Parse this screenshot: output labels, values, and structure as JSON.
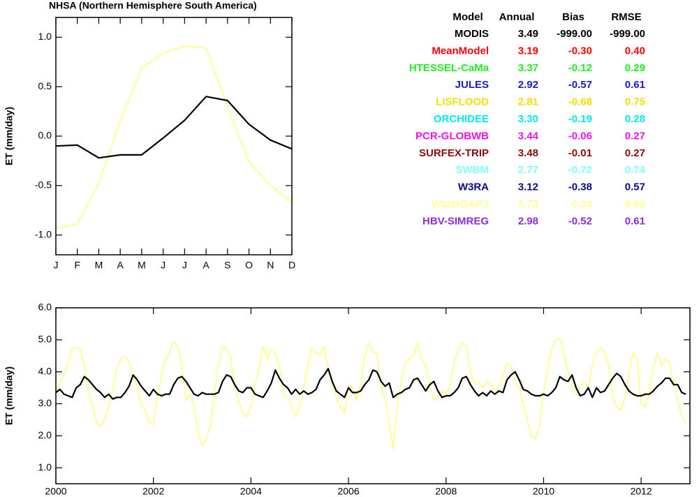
{
  "chart_data": [
    {
      "type": "line",
      "title": "NHSA (Northern Hemisphere South America)",
      "y_label": "ET (mm/day)",
      "categories": [
        "J",
        "F",
        "M",
        "A",
        "M",
        "J",
        "J",
        "A",
        "S",
        "O",
        "N",
        "D"
      ],
      "series": [
        {
          "color": "#ffff80",
          "values": [
            -0.93,
            -0.89,
            -0.48,
            0.15,
            0.69,
            0.84,
            0.91,
            0.89,
            0.3,
            -0.26,
            -0.5,
            -0.67
          ]
        },
        {
          "color": "#000000",
          "values": [
            -0.1,
            -0.09,
            -0.22,
            -0.19,
            -0.19,
            -0.02,
            0.16,
            0.4,
            0.36,
            0.12,
            -0.04,
            -0.13
          ]
        }
      ],
      "ylim": [
        -1.2,
        1.2
      ],
      "yticks": [
        {
          "value": -1,
          "label": "-1.0"
        },
        -0.5,
        {
          "value": 0,
          "label": "0.0"
        },
        0.5,
        {
          "value": 1,
          "label": "1.0"
        }
      ]
    },
    {
      "type": "line",
      "y_label": "ET (mm/day)",
      "x": [
        2000,
        2000.083,
        2000.167,
        2000.25,
        2000.333,
        2000.417,
        2000.5,
        2000.583,
        2000.667,
        2000.75,
        2000.833,
        2000.917,
        2001,
        2001.083,
        2001.167,
        2001.25,
        2001.333,
        2001.417,
        2001.5,
        2001.583,
        2001.667,
        2001.75,
        2001.833,
        2001.917,
        2002,
        2002.083,
        2002.167,
        2002.25,
        2002.333,
        2002.417,
        2002.5,
        2002.583,
        2002.667,
        2002.75,
        2002.833,
        2002.917,
        2003,
        2003.083,
        2003.167,
        2003.25,
        2003.333,
        2003.417,
        2003.5,
        2003.583,
        2003.667,
        2003.75,
        2003.833,
        2003.917,
        2004,
        2004.083,
        2004.167,
        2004.25,
        2004.333,
        2004.417,
        2004.5,
        2004.583,
        2004.667,
        2004.75,
        2004.833,
        2004.917,
        2005,
        2005.083,
        2005.167,
        2005.25,
        2005.333,
        2005.417,
        2005.5,
        2005.583,
        2005.667,
        2005.75,
        2005.833,
        2005.917,
        2006,
        2006.083,
        2006.167,
        2006.25,
        2006.333,
        2006.417,
        2006.5,
        2006.583,
        2006.667,
        2006.75,
        2006.833,
        2006.917,
        2007,
        2007.083,
        2007.167,
        2007.25,
        2007.333,
        2007.417,
        2007.5,
        2007.583,
        2007.667,
        2007.75,
        2007.833,
        2007.917,
        2008,
        2008.083,
        2008.167,
        2008.25,
        2008.333,
        2008.417,
        2008.5,
        2008.583,
        2008.667,
        2008.75,
        2008.833,
        2008.917,
        2009,
        2009.083,
        2009.167,
        2009.25,
        2009.333,
        2009.417,
        2009.5,
        2009.583,
        2009.667,
        2009.75,
        2009.833,
        2009.917,
        2010,
        2010.083,
        2010.167,
        2010.25,
        2010.333,
        2010.417,
        2010.5,
        2010.583,
        2010.667,
        2010.75,
        2010.833,
        2010.917,
        2011,
        2011.083,
        2011.167,
        2011.25,
        2011.333,
        2011.417,
        2011.5,
        2011.583,
        2011.667,
        2011.75,
        2011.833,
        2011.917,
        2012,
        2012.083,
        2012.167,
        2012.25,
        2012.333,
        2012.417,
        2012.5,
        2012.583,
        2012.667,
        2012.75,
        2012.833,
        2012.917
      ],
      "series": [
        {
          "color": "#ffff80",
          "values": [
            3.3,
            3.7,
            3.9,
            4.3,
            4.75,
            4.75,
            4.7,
            4.2,
            3.4,
            2.9,
            2.45,
            2.3,
            2.5,
            2.9,
            3.5,
            4.1,
            4.4,
            4.5,
            4.3,
            3.9,
            3.5,
            3.0,
            2.8,
            2.4,
            2.35,
            3.2,
            3.9,
            4.4,
            4.6,
            4.95,
            4.8,
            4.2,
            3.1,
            3.3,
            2.9,
            2.1,
            1.7,
            1.9,
            2.3,
            3.4,
            4.2,
            4.8,
            4.7,
            4.5,
            3.5,
            3.1,
            2.7,
            2.6,
            2.9,
            3.6,
            4.1,
            4.8,
            4.4,
            4.7,
            4.6,
            4.2,
            3.3,
            3.2,
            2.9,
            2.6,
            2.9,
            3.5,
            4.2,
            4.75,
            4.6,
            4.5,
            4.8,
            4.0,
            3.6,
            3.2,
            2.9,
            2.7,
            3.6,
            3.5,
            3.1,
            3.6,
            4.5,
            4.9,
            4.6,
            4.6,
            3.6,
            3.1,
            2.4,
            1.6,
            2.9,
            3.7,
            4.3,
            4.4,
            4.5,
            4.9,
            4.4,
            4.2,
            3.6,
            3.1,
            3.2,
            3.4,
            3.3,
            3.6,
            4.3,
            4.7,
            4.9,
            4.8,
            4.0,
            3.6,
            3.7,
            3.5,
            3.7,
            3.6,
            3.4,
            3.5,
            3.9,
            4.3,
            4.2,
            3.7,
            3.5,
            3.0,
            2.5,
            2.0,
            1.9,
            2.3,
            3.4,
            4.1,
            4.7,
            5.0,
            5.05,
            4.6,
            4.0,
            3.5,
            3.3,
            3.5,
            3.7,
            3.5,
            4.2,
            4.6,
            4.75,
            4.6,
            4.2,
            3.2,
            2.9,
            2.8,
            3.2,
            3.9,
            4.6,
            4.4,
            3.0,
            2.9,
            3.4,
            4.1,
            4.6,
            4.2,
            4.4,
            4.3,
            3.6,
            3.1,
            2.6,
            2.4
          ]
        },
        {
          "color": "#000000",
          "values": [
            3.35,
            3.45,
            3.3,
            3.25,
            3.2,
            3.5,
            3.6,
            3.85,
            3.75,
            3.6,
            3.45,
            3.35,
            3.2,
            3.3,
            3.15,
            3.2,
            3.2,
            3.35,
            3.55,
            3.9,
            3.75,
            3.55,
            3.4,
            3.25,
            3.45,
            3.3,
            3.25,
            3.3,
            3.3,
            3.6,
            3.8,
            3.85,
            3.7,
            3.5,
            3.3,
            3.25,
            3.35,
            3.3,
            3.3,
            3.3,
            3.35,
            3.7,
            3.9,
            3.85,
            3.6,
            3.4,
            3.35,
            3.5,
            3.5,
            3.3,
            3.25,
            3.2,
            3.4,
            3.65,
            4.05,
            3.8,
            3.6,
            3.5,
            3.3,
            3.45,
            3.3,
            3.4,
            3.3,
            3.35,
            3.45,
            3.75,
            3.9,
            4.1,
            3.7,
            3.4,
            3.3,
            3.2,
            3.5,
            3.35,
            3.35,
            3.4,
            3.6,
            3.75,
            4.05,
            4.0,
            3.7,
            3.55,
            3.65,
            3.2,
            3.3,
            3.35,
            3.45,
            3.5,
            3.75,
            3.8,
            3.6,
            3.4,
            3.6,
            3.7,
            3.4,
            3.2,
            3.25,
            3.25,
            3.35,
            3.5,
            3.8,
            3.85,
            3.6,
            3.4,
            3.25,
            3.35,
            3.25,
            3.4,
            3.3,
            3.4,
            3.35,
            3.75,
            3.9,
            4.0,
            3.75,
            3.45,
            3.4,
            3.3,
            3.25,
            3.25,
            3.3,
            3.25,
            3.35,
            3.5,
            3.85,
            3.75,
            3.7,
            3.9,
            3.5,
            3.25,
            3.3,
            3.5,
            3.2,
            3.5,
            3.35,
            3.4,
            3.6,
            3.8,
            3.95,
            3.85,
            3.6,
            3.4,
            3.3,
            3.25,
            3.25,
            3.3,
            3.3,
            3.4,
            3.55,
            3.65,
            3.8,
            3.8,
            3.6,
            3.6,
            3.35,
            3.3
          ]
        }
      ],
      "xlim": [
        2000,
        2013
      ],
      "ylim": [
        0.5,
        6
      ],
      "xticks": [
        2000,
        2002,
        2004,
        2006,
        2008,
        2010,
        2012
      ],
      "yticks": [
        {
          "value": 1,
          "label": "1.0"
        },
        {
          "value": 2,
          "label": "2.0"
        },
        {
          "value": 3,
          "label": "3.0"
        },
        {
          "value": 4,
          "label": "4.0"
        },
        {
          "value": 5,
          "label": "5.0"
        },
        {
          "value": 6,
          "label": "6.0"
        }
      ]
    }
  ],
  "table": {
    "header": [
      "Model",
      "Annual",
      "Bias",
      "RMSE"
    ],
    "rows": [
      {
        "color": "#000000",
        "cells": [
          "MODIS",
          "3.49",
          "-999.00",
          "-999.00"
        ]
      },
      {
        "color": "#ff0000",
        "cells": [
          "MeanModel",
          "3.19",
          "-0.30",
          "0.40"
        ]
      },
      {
        "color": "#22ee22",
        "cells": [
          "HTESSEL-CaMa",
          "3.37",
          "-0.12",
          "0.29"
        ]
      },
      {
        "color": "#1a1acc",
        "cells": [
          "JULES",
          "2.92",
          "-0.57",
          "0.61"
        ]
      },
      {
        "color": "#f0e000",
        "cells": [
          "LISFLOOD",
          "2.81",
          "-0.68",
          "0.75"
        ]
      },
      {
        "color": "#00e8e8",
        "cells": [
          "ORCHIDEE",
          "3.30",
          "-0.19",
          "0.28"
        ]
      },
      {
        "color": "#ee11ee",
        "cells": [
          "PCR-GLOBWB",
          "3.44",
          "-0.06",
          "0.27"
        ]
      },
      {
        "color": "#8b0a0a",
        "cells": [
          "SURFEX-TRIP",
          "3.48",
          "-0.01",
          "0.27"
        ]
      },
      {
        "color": "#80ffff",
        "cells": [
          "SWBM",
          "2.77",
          "-0.72",
          "0.74"
        ]
      },
      {
        "color": "#0a0a80",
        "cells": [
          "W3RA",
          "3.12",
          "-0.38",
          "0.57"
        ]
      },
      {
        "color": "#ffff99",
        "cells": [
          "WaterGAP3",
          "3.73",
          "0.24",
          "0.80"
        ]
      },
      {
        "color": "#8a2be2",
        "cells": [
          "HBV-SIMREG",
          "2.98",
          "-0.52",
          "0.61"
        ]
      }
    ]
  }
}
